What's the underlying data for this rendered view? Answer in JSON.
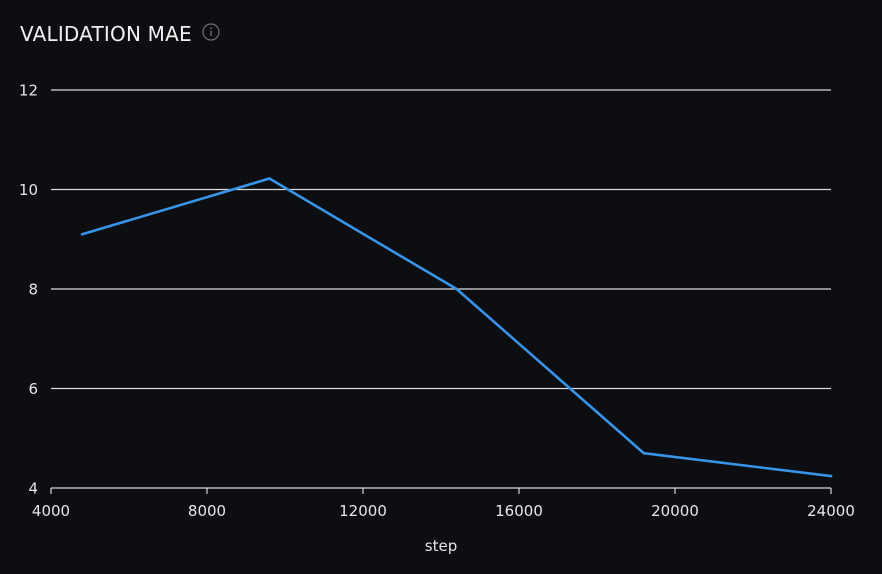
{
  "panel": {
    "title": "VALIDATION MAE",
    "info_icon": "info-circle-icon"
  },
  "colors": {
    "background": "#0d0e11",
    "grid": "#d9d9dc",
    "line": "#3794e8",
    "text": "#e6e6e8"
  },
  "chart_data": {
    "type": "line",
    "title": "VALIDATION MAE",
    "xlabel": "step",
    "ylabel": "",
    "xlim": [
      4000,
      24000
    ],
    "ylim": [
      4,
      12
    ],
    "xticks": [
      4000,
      8000,
      12000,
      16000,
      20000,
      24000
    ],
    "yticks": [
      4,
      6,
      8,
      10,
      12
    ],
    "grid": "horizontal",
    "series": [
      {
        "x": [
          4800,
          9600,
          14400,
          19200,
          24000
        ],
        "y": [
          9.1,
          10.22,
          8.0,
          4.7,
          4.24
        ]
      }
    ]
  }
}
